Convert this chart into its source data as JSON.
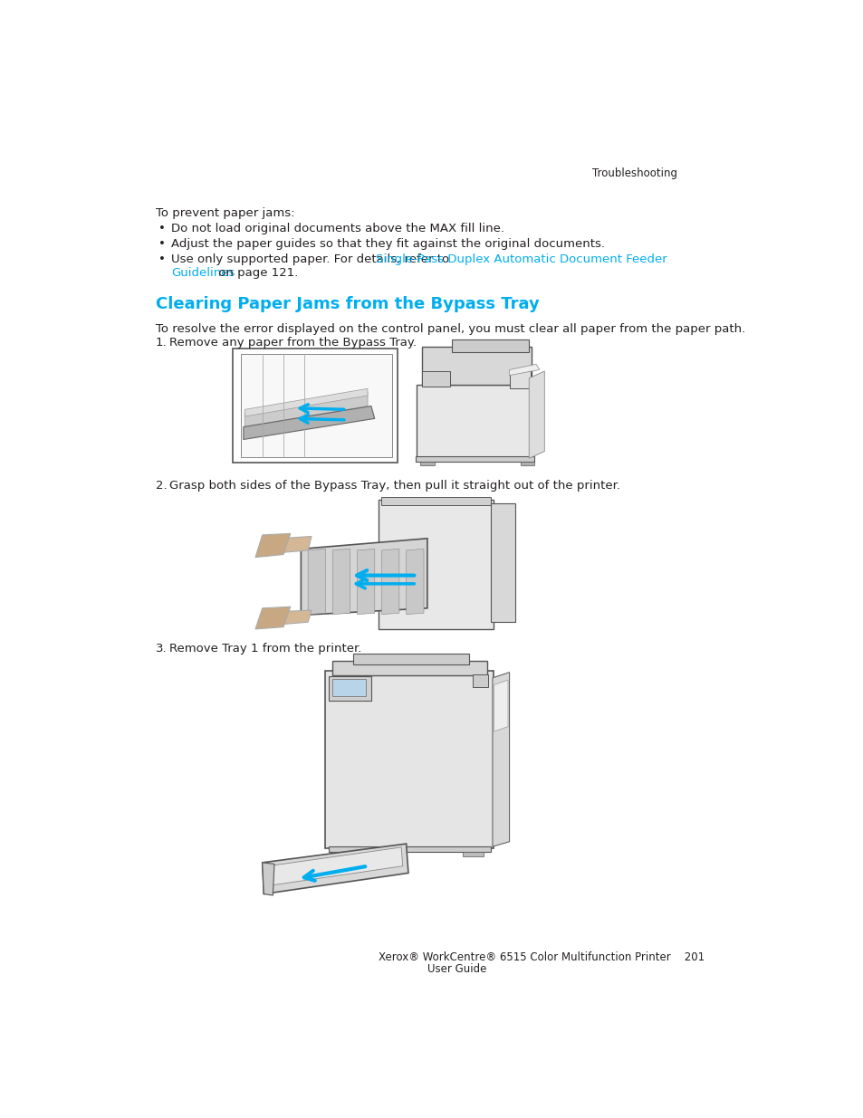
{
  "background_color": "#ffffff",
  "header_text": "Troubleshooting",
  "header_color": "#231f20",
  "header_fontsize": 8.5,
  "intro_text": "To prevent paper jams:",
  "intro_fontsize": 9.5,
  "bullets": [
    "Do not load original documents above the MAX fill line.",
    "Adjust the paper guides so that they fit against the original documents.",
    "Use only supported paper. For details, refer to "
  ],
  "bullet_link_text1": "Single-Pass Duplex Automatic Document Feeder",
  "bullet_link_text2": "Guidelines",
  "bullet_link_suffix": " on page 121.",
  "bullet_fontsize": 9.5,
  "section_title": "Clearing Paper Jams from the Bypass Tray",
  "section_title_color": "#00aeef",
  "section_title_fontsize": 13,
  "body_text1": "To resolve the error displayed on the control panel, you must clear all paper from the paper path.",
  "step1_num": "1.",
  "step1_text": "Remove any paper from the Bypass Tray.",
  "step2_num": "2.",
  "step2_text": "Grasp both sides of the Bypass Tray, then pull it straight out of the printer.",
  "step3_num": "3.",
  "step3_text": "Remove Tray 1 from the printer.",
  "body_fontsize": 9.5,
  "footer_text1": "Xerox® WorkCentre® 6515 Color Multifunction Printer",
  "footer_page": "201",
  "footer_text2": "User Guide",
  "footer_fontsize": 8.5,
  "text_color": "#231f20",
  "link_color": "#00aeef",
  "bullet_symbol": "•"
}
